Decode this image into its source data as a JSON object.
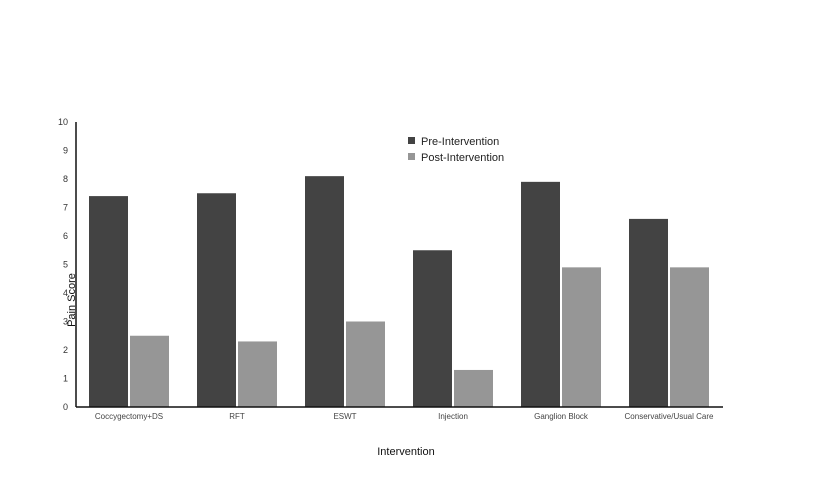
{
  "chart_data": {
    "type": "bar",
    "xlabel": "Intervention",
    "ylabel": "Pain Score",
    "ylim": [
      0,
      10
    ],
    "yticks": [
      "0",
      "1",
      "2",
      "3",
      "4",
      "5",
      "6",
      "7",
      "8",
      "9",
      "10"
    ],
    "grid": false,
    "legend_position": "top-center",
    "categories": [
      "Coccygectomy+DS",
      "RFT",
      "ESWT",
      "Injection",
      "Ganglion Block",
      "Conservative/Usual Care"
    ],
    "series": [
      {
        "name": "Pre-Intervention",
        "color": "#434343",
        "values": [
          7.4,
          7.5,
          8.1,
          5.5,
          7.9,
          6.6
        ]
      },
      {
        "name": "Post-Intervention",
        "color": "#969696",
        "values": [
          2.5,
          2.3,
          3.0,
          1.3,
          4.9,
          4.9
        ]
      }
    ]
  }
}
